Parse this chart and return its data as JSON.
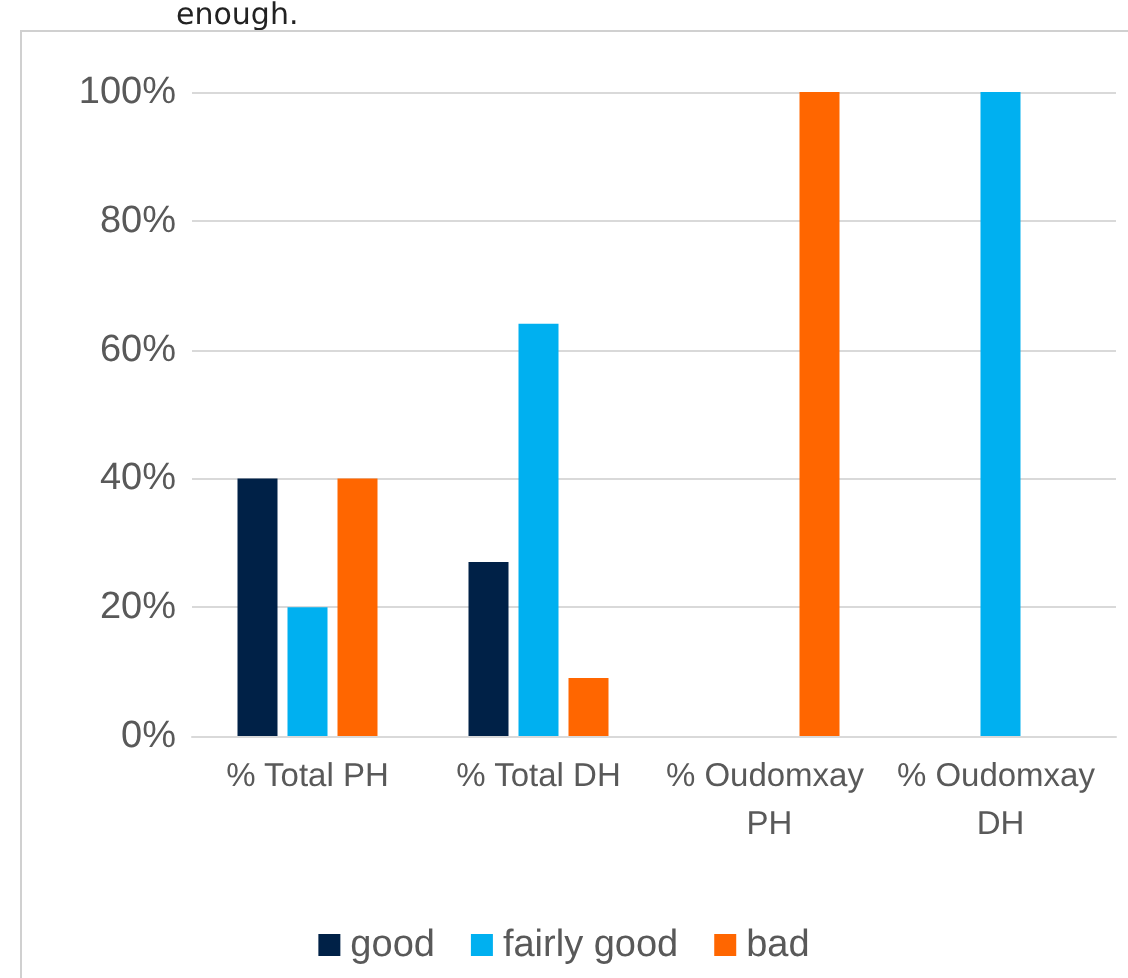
{
  "chart_data": {
    "type": "bar",
    "annotations": [
      "enough."
    ],
    "categories": [
      "% Total PH",
      "% Total DH",
      "% Oudomxay PH",
      "% Oudomxay DH"
    ],
    "series": [
      {
        "name": "good",
        "color": "#002147",
        "values": [
          40,
          27,
          0,
          0
        ]
      },
      {
        "name": "fairly good",
        "color": "#00b0f0",
        "values": [
          20,
          64,
          0,
          100
        ]
      },
      {
        "name": "bad",
        "color": "#ff6600",
        "values": [
          40,
          9,
          100,
          0
        ]
      }
    ],
    "ylim": [
      0,
      100
    ],
    "yticks": [
      {
        "value": 0,
        "label": "0%"
      },
      {
        "value": 20,
        "label": "20%"
      },
      {
        "value": 40,
        "label": "40%"
      },
      {
        "value": 60,
        "label": "60%"
      },
      {
        "value": 80,
        "label": "80%"
      },
      {
        "value": 100,
        "label": "100%"
      }
    ],
    "grid": "y",
    "legend": "bottom"
  }
}
